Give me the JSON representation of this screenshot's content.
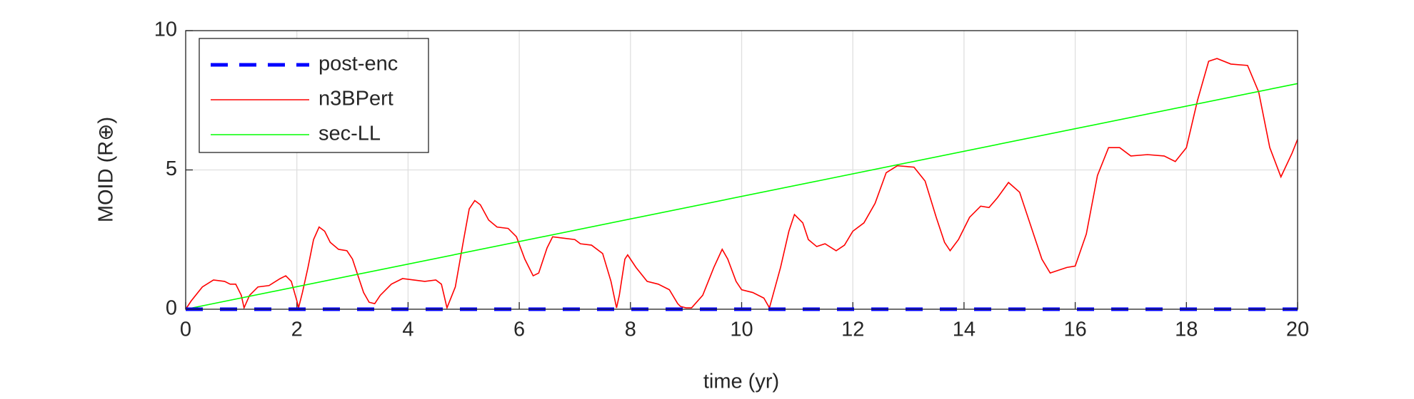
{
  "chart_data": {
    "type": "line",
    "xlabel": "time (yr)",
    "ylabel": "MOID (R⊕)",
    "xlim": [
      0,
      20
    ],
    "ylim": [
      0,
      10
    ],
    "xticks": [
      0,
      2,
      4,
      6,
      8,
      10,
      12,
      14,
      16,
      18,
      20
    ],
    "yticks": [
      0,
      5,
      10
    ],
    "grid": true,
    "legend": "upper left",
    "series": [
      {
        "name": "post-enc",
        "color": "#0000ff",
        "dashed": true,
        "x": [
          0,
          20
        ],
        "values": [
          0,
          0
        ]
      },
      {
        "name": "n3BPert",
        "color": "#ff0000",
        "dashed": false,
        "x": [
          0,
          0.1,
          0.3,
          0.5,
          0.7,
          0.8,
          0.9,
          1.0,
          1.05,
          1.15,
          1.3,
          1.5,
          1.7,
          1.8,
          1.9,
          2.0,
          2.03,
          2.1,
          2.2,
          2.3,
          2.4,
          2.5,
          2.6,
          2.75,
          2.9,
          3.0,
          3.1,
          3.2,
          3.3,
          3.4,
          3.5,
          3.7,
          3.9,
          4.1,
          4.3,
          4.5,
          4.6,
          4.7,
          4.85,
          5.0,
          5.1,
          5.2,
          5.3,
          5.45,
          5.6,
          5.8,
          5.95,
          6.1,
          6.25,
          6.35,
          6.5,
          6.6,
          6.8,
          7.0,
          7.1,
          7.3,
          7.5,
          7.65,
          7.75,
          7.8,
          7.9,
          7.95,
          8.1,
          8.3,
          8.5,
          8.7,
          8.85,
          8.9,
          9.0,
          9.1,
          9.3,
          9.5,
          9.65,
          9.75,
          9.9,
          10.0,
          10.2,
          10.4,
          10.5,
          10.7,
          10.85,
          10.95,
          11.1,
          11.2,
          11.35,
          11.5,
          11.7,
          11.85,
          12.0,
          12.2,
          12.4,
          12.6,
          12.8,
          13.1,
          13.3,
          13.5,
          13.65,
          13.75,
          13.9,
          14.1,
          14.3,
          14.45,
          14.6,
          14.8,
          15.0,
          15.2,
          15.4,
          15.55,
          15.7,
          15.85,
          16.0,
          16.2,
          16.4,
          16.6,
          16.8,
          17.0,
          17.3,
          17.6,
          17.8,
          18.0,
          18.2,
          18.4,
          18.55,
          18.8,
          19.1,
          19.3,
          19.5,
          19.7,
          19.9,
          20.0
        ],
        "values": [
          0,
          0.3,
          0.8,
          1.05,
          1.0,
          0.9,
          0.9,
          0.5,
          0.05,
          0.5,
          0.8,
          0.85,
          1.1,
          1.2,
          1.0,
          0.3,
          0.05,
          0.6,
          1.5,
          2.5,
          2.95,
          2.8,
          2.4,
          2.15,
          2.1,
          1.8,
          1.2,
          0.6,
          0.25,
          0.2,
          0.5,
          0.9,
          1.1,
          1.05,
          1.0,
          1.05,
          0.9,
          0.05,
          0.8,
          2.5,
          3.6,
          3.9,
          3.75,
          3.2,
          2.95,
          2.9,
          2.6,
          1.8,
          1.2,
          1.3,
          2.2,
          2.6,
          2.55,
          2.5,
          2.35,
          2.3,
          2.0,
          1.0,
          0.05,
          0.5,
          1.8,
          1.95,
          1.5,
          1.0,
          0.9,
          0.7,
          0.2,
          0.1,
          0.05,
          0.05,
          0.5,
          1.5,
          2.15,
          1.8,
          1.0,
          0.7,
          0.6,
          0.4,
          0.05,
          1.5,
          2.8,
          3.4,
          3.1,
          2.5,
          2.25,
          2.35,
          2.1,
          2.3,
          2.8,
          3.1,
          3.8,
          4.9,
          5.15,
          5.1,
          4.6,
          3.3,
          2.4,
          2.1,
          2.5,
          3.3,
          3.7,
          3.65,
          4.0,
          4.55,
          4.2,
          3.0,
          1.8,
          1.3,
          1.4,
          1.5,
          1.55,
          2.7,
          4.8,
          5.8,
          5.8,
          5.5,
          5.55,
          5.5,
          5.3,
          5.8,
          7.5,
          8.9,
          9.0,
          8.8,
          8.75,
          7.8,
          5.8,
          4.75,
          5.6,
          6.1
        ]
      },
      {
        "name": "sec-LL",
        "color": "#00ff00",
        "dashed": false,
        "x": [
          0,
          20
        ],
        "values": [
          0,
          8.1
        ]
      }
    ]
  }
}
